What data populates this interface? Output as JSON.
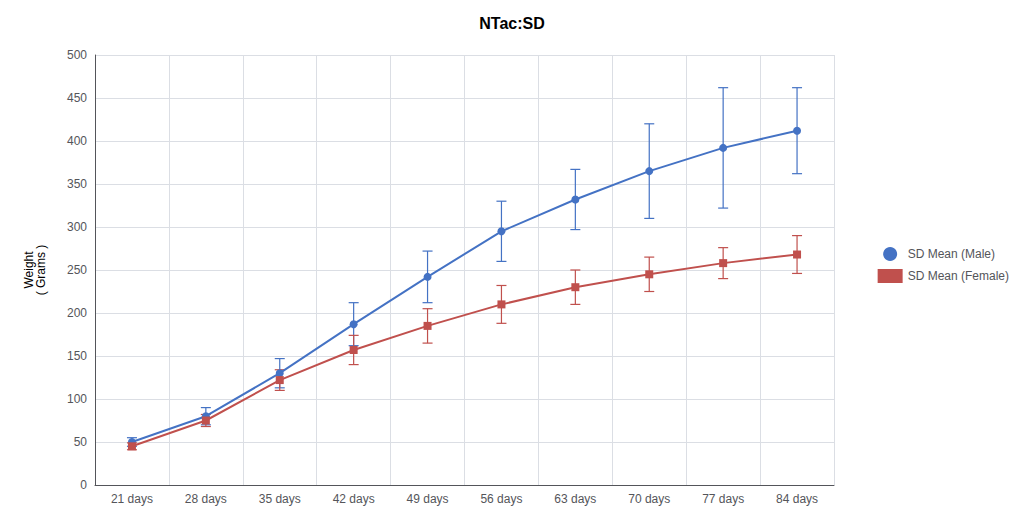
{
  "chart_data": {
    "type": "line",
    "title": "NTac:SD",
    "ylabel": "Weight\n( Grams )",
    "categories": [
      "21 days",
      "28 days",
      "35 days",
      "42 days",
      "49 days",
      "56 days",
      "63 days",
      "70 days",
      "77 days",
      "84 days"
    ],
    "series": [
      {
        "name": "SD Mean (Male)",
        "color": "#4472C4",
        "marker": "circle",
        "values": [
          50,
          80,
          130,
          187,
          242,
          295,
          332,
          365,
          392,
          412
        ],
        "errors": [
          5,
          10,
          17,
          25,
          30,
          35,
          35,
          55,
          70,
          50
        ]
      },
      {
        "name": "SD Mean (Female)",
        "color": "#C0504D",
        "marker": "square",
        "values": [
          45,
          75,
          122,
          157,
          185,
          210,
          230,
          245,
          258,
          268
        ],
        "errors": [
          4,
          7,
          12,
          17,
          20,
          22,
          20,
          20,
          18,
          22
        ]
      }
    ],
    "ylim": [
      0,
      500
    ],
    "yticks": [
      0,
      50,
      100,
      150,
      200,
      250,
      300,
      350,
      400,
      450,
      500
    ],
    "grid": true,
    "legend": "right"
  }
}
